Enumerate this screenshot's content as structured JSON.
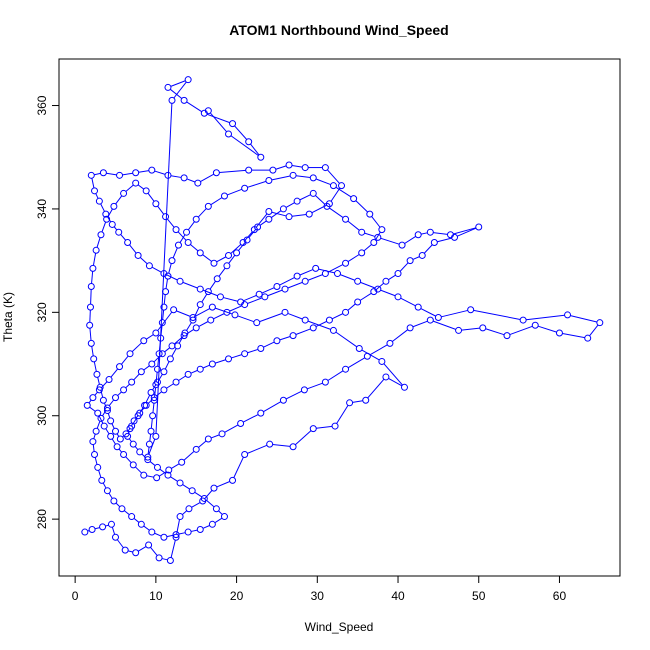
{
  "chart_data": {
    "type": "scatter",
    "title": "ATOM1 Northbound Wind_Speed",
    "xlabel": "Wind_Speed",
    "ylabel": "Theta (K)",
    "xlim": [
      -2,
      67.5
    ],
    "ylim": [
      269,
      369
    ],
    "xticks": [
      0,
      10,
      20,
      30,
      40,
      50,
      60
    ],
    "yticks": [
      280,
      300,
      320,
      340,
      360
    ],
    "grid": false,
    "marker": "open-circle",
    "connected": true,
    "color": "#0000ff",
    "series": [
      {
        "values": [
          [
            1.2,
            277.5
          ],
          [
            2.1,
            278.0
          ],
          [
            3.4,
            278.5
          ],
          [
            4.5,
            279.0
          ],
          [
            5.0,
            276.5
          ],
          [
            6.2,
            274.0
          ],
          [
            7.5,
            273.5
          ],
          [
            9.1,
            275.0
          ],
          [
            10.4,
            272.5
          ],
          [
            11.8,
            272.0
          ],
          [
            12.5,
            276.5
          ],
          [
            13.0,
            280.5
          ],
          [
            14.1,
            282.0
          ],
          [
            15.8,
            283.5
          ],
          [
            17.2,
            286.0
          ],
          [
            19.5,
            287.5
          ],
          [
            21.0,
            292.5
          ],
          [
            24.1,
            294.5
          ],
          [
            27.0,
            294.0
          ],
          [
            29.5,
            297.5
          ],
          [
            32.2,
            298.0
          ],
          [
            34.0,
            302.5
          ],
          [
            36.0,
            303.0
          ],
          [
            38.5,
            307.5
          ],
          [
            40.8,
            305.5
          ],
          [
            38.0,
            310.5
          ],
          [
            35.2,
            313.0
          ],
          [
            32.0,
            316.5
          ],
          [
            28.5,
            318.5
          ],
          [
            26.0,
            320.0
          ],
          [
            22.5,
            318.0
          ],
          [
            19.8,
            319.5
          ],
          [
            17.0,
            321.0
          ],
          [
            14.6,
            319.0
          ],
          [
            12.2,
            320.5
          ],
          [
            10.0,
            316.0
          ],
          [
            8.5,
            314.5
          ],
          [
            6.8,
            312.0
          ],
          [
            5.5,
            309.5
          ],
          [
            4.2,
            307.0
          ],
          [
            3.0,
            305.0
          ],
          [
            2.2,
            303.5
          ],
          [
            1.5,
            302.0
          ],
          [
            2.8,
            300.5
          ],
          [
            3.6,
            298.0
          ],
          [
            4.4,
            296.0
          ],
          [
            5.2,
            294.0
          ],
          [
            6.0,
            292.5
          ],
          [
            7.2,
            290.5
          ],
          [
            8.5,
            288.5
          ],
          [
            10.1,
            288.0
          ],
          [
            11.6,
            289.5
          ],
          [
            13.2,
            291.0
          ],
          [
            15.0,
            293.5
          ],
          [
            16.5,
            295.5
          ],
          [
            18.2,
            296.5
          ],
          [
            20.5,
            298.5
          ],
          [
            23.0,
            300.5
          ],
          [
            25.8,
            303.0
          ],
          [
            28.4,
            305.0
          ],
          [
            31.0,
            306.5
          ],
          [
            33.5,
            309.0
          ],
          [
            36.2,
            311.5
          ],
          [
            39.0,
            314.0
          ],
          [
            41.5,
            317.0
          ],
          [
            44.0,
            318.5
          ],
          [
            47.5,
            316.5
          ],
          [
            50.5,
            317.0
          ],
          [
            53.5,
            315.5
          ],
          [
            57.0,
            317.5
          ],
          [
            60.0,
            316.0
          ],
          [
            63.5,
            315.0
          ],
          [
            65.0,
            318.0
          ],
          [
            61.0,
            319.5
          ],
          [
            55.5,
            318.5
          ],
          [
            49.0,
            320.5
          ],
          [
            45.0,
            319.0
          ],
          [
            42.5,
            321.0
          ],
          [
            40.0,
            323.0
          ],
          [
            37.5,
            324.5
          ],
          [
            35.0,
            326.0
          ],
          [
            32.5,
            327.5
          ],
          [
            29.8,
            328.5
          ],
          [
            27.5,
            327.0
          ],
          [
            25.0,
            325.0
          ],
          [
            22.8,
            323.5
          ],
          [
            20.5,
            322.0
          ],
          [
            18.0,
            323.0
          ],
          [
            15.5,
            324.5
          ],
          [
            13.0,
            326.0
          ],
          [
            11.0,
            327.5
          ],
          [
            9.2,
            329.0
          ],
          [
            7.8,
            331.0
          ],
          [
            6.5,
            333.5
          ],
          [
            5.4,
            335.5
          ],
          [
            4.6,
            337.0
          ],
          [
            3.8,
            339.0
          ],
          [
            3.0,
            341.5
          ],
          [
            2.4,
            343.5
          ],
          [
            2.0,
            346.5
          ],
          [
            3.5,
            347.0
          ],
          [
            5.5,
            346.5
          ],
          [
            7.5,
            347.0
          ],
          [
            9.5,
            347.5
          ],
          [
            11.5,
            346.5
          ],
          [
            13.5,
            346.0
          ],
          [
            15.2,
            345.0
          ],
          [
            17.5,
            347.0
          ],
          [
            21.5,
            347.5
          ],
          [
            24.5,
            347.5
          ],
          [
            26.5,
            348.5
          ],
          [
            28.5,
            348.0
          ],
          [
            31.0,
            348.0
          ],
          [
            33.0,
            344.5
          ],
          [
            31.5,
            341.0
          ],
          [
            29.0,
            339.0
          ],
          [
            26.5,
            338.5
          ],
          [
            24.0,
            339.5
          ],
          [
            22.2,
            336.0
          ],
          [
            20.8,
            333.5
          ],
          [
            19.0,
            331.0
          ],
          [
            17.2,
            329.5
          ],
          [
            15.5,
            331.5
          ],
          [
            14.0,
            333.5
          ],
          [
            12.5,
            336.0
          ],
          [
            11.2,
            338.5
          ],
          [
            10.0,
            341.0
          ],
          [
            8.8,
            343.5
          ],
          [
            7.5,
            345.0
          ],
          [
            6.0,
            343.0
          ],
          [
            4.8,
            340.5
          ],
          [
            3.9,
            338.0
          ],
          [
            3.2,
            335.0
          ],
          [
            2.6,
            332.0
          ],
          [
            2.2,
            328.5
          ],
          [
            2.0,
            325.0
          ],
          [
            1.9,
            321.0
          ],
          [
            1.8,
            317.5
          ],
          [
            2.0,
            314.0
          ],
          [
            2.3,
            311.0
          ],
          [
            2.7,
            308.0
          ],
          [
            3.1,
            305.5
          ],
          [
            3.5,
            303.0
          ],
          [
            4.0,
            301.0
          ],
          [
            4.4,
            299.0
          ],
          [
            5.0,
            297.0
          ],
          [
            5.6,
            295.5
          ],
          [
            6.3,
            296.5
          ],
          [
            7.0,
            298.0
          ],
          [
            7.8,
            300.0
          ],
          [
            8.6,
            302.0
          ],
          [
            9.4,
            304.5
          ],
          [
            10.2,
            306.5
          ],
          [
            11.0,
            308.5
          ],
          [
            11.8,
            311.0
          ],
          [
            12.7,
            313.5
          ],
          [
            13.6,
            316.0
          ],
          [
            14.6,
            318.5
          ],
          [
            15.5,
            321.5
          ],
          [
            16.5,
            324.0
          ],
          [
            17.6,
            326.5
          ],
          [
            18.8,
            329.0
          ],
          [
            20.0,
            331.5
          ],
          [
            21.3,
            334.0
          ],
          [
            22.6,
            336.5
          ],
          [
            24.0,
            338.0
          ],
          [
            25.8,
            340.0
          ],
          [
            27.5,
            341.5
          ],
          [
            29.5,
            343.0
          ],
          [
            31.2,
            340.5
          ],
          [
            33.5,
            338.0
          ],
          [
            35.5,
            335.5
          ],
          [
            37.5,
            334.5
          ],
          [
            40.5,
            333.0
          ],
          [
            42.5,
            335.0
          ],
          [
            44.0,
            335.5
          ],
          [
            46.5,
            335.0
          ],
          [
            50.0,
            336.5
          ],
          [
            47.0,
            334.5
          ],
          [
            44.5,
            333.5
          ],
          [
            43.0,
            331.0
          ],
          [
            41.5,
            330.0
          ],
          [
            40.0,
            327.5
          ],
          [
            38.5,
            326.0
          ],
          [
            37.0,
            324.0
          ],
          [
            35.0,
            322.0
          ],
          [
            33.5,
            320.0
          ],
          [
            31.5,
            318.5
          ],
          [
            29.5,
            317.0
          ],
          [
            27.0,
            315.5
          ],
          [
            25.0,
            314.5
          ],
          [
            23.0,
            313.0
          ],
          [
            21.0,
            312.0
          ],
          [
            19.0,
            311.0
          ],
          [
            17.0,
            310.0
          ],
          [
            15.5,
            309.0
          ],
          [
            14.0,
            308.0
          ],
          [
            12.5,
            306.5
          ],
          [
            11.0,
            305.0
          ],
          [
            9.8,
            303.5
          ],
          [
            8.8,
            302.0
          ],
          [
            8.0,
            300.5
          ],
          [
            7.3,
            299.0
          ],
          [
            6.8,
            297.5
          ],
          [
            6.5,
            296.0
          ],
          [
            7.2,
            294.5
          ],
          [
            8.0,
            293.0
          ],
          [
            9.0,
            291.5
          ],
          [
            10.2,
            290.0
          ],
          [
            11.5,
            288.5
          ],
          [
            13.0,
            287.0
          ],
          [
            14.5,
            285.5
          ],
          [
            16.0,
            284.0
          ],
          [
            17.5,
            282.0
          ],
          [
            18.5,
            280.5
          ],
          [
            17.0,
            279.0
          ],
          [
            15.5,
            278.0
          ],
          [
            14.0,
            277.5
          ],
          [
            12.5,
            277.0
          ],
          [
            11.0,
            276.5
          ],
          [
            9.5,
            277.5
          ],
          [
            8.2,
            279.0
          ],
          [
            7.0,
            280.5
          ],
          [
            5.8,
            282.0
          ],
          [
            4.8,
            283.5
          ],
          [
            4.0,
            285.5
          ],
          [
            3.3,
            287.5
          ],
          [
            2.8,
            290.0
          ],
          [
            2.4,
            292.5
          ],
          [
            2.2,
            295.0
          ],
          [
            2.6,
            297.0
          ],
          [
            3.2,
            299.5
          ],
          [
            4.0,
            301.5
          ],
          [
            5.0,
            303.5
          ],
          [
            6.0,
            305.0
          ],
          [
            7.0,
            306.5
          ],
          [
            8.2,
            308.5
          ],
          [
            9.5,
            310.0
          ],
          [
            10.8,
            312.0
          ],
          [
            12.0,
            313.5
          ],
          [
            13.5,
            315.5
          ],
          [
            15.0,
            317.0
          ],
          [
            16.8,
            318.5
          ],
          [
            18.8,
            320.0
          ],
          [
            21.0,
            321.5
          ],
          [
            23.5,
            323.0
          ],
          [
            26.0,
            324.5
          ],
          [
            28.5,
            326.0
          ],
          [
            31.0,
            327.5
          ],
          [
            33.5,
            329.5
          ],
          [
            35.5,
            331.5
          ],
          [
            37.0,
            333.5
          ],
          [
            38.0,
            336.0
          ],
          [
            36.5,
            339.0
          ],
          [
            34.5,
            342.0
          ],
          [
            32.0,
            344.5
          ],
          [
            29.5,
            346.0
          ],
          [
            27.0,
            346.5
          ],
          [
            24.0,
            345.5
          ],
          [
            21.0,
            344.0
          ],
          [
            18.5,
            342.5
          ],
          [
            16.5,
            340.5
          ],
          [
            15.0,
            338.0
          ],
          [
            13.8,
            335.5
          ],
          [
            12.8,
            333.0
          ],
          [
            12.0,
            330.0
          ],
          [
            11.5,
            327.0
          ],
          [
            11.2,
            324.0
          ],
          [
            11.0,
            321.0
          ],
          [
            10.8,
            318.0
          ],
          [
            10.6,
            315.0
          ],
          [
            10.4,
            312.0
          ],
          [
            10.2,
            309.0
          ],
          [
            10.0,
            306.0
          ],
          [
            9.8,
            303.0
          ],
          [
            9.6,
            300.0
          ],
          [
            9.4,
            297.0
          ],
          [
            9.2,
            294.5
          ],
          [
            9.0,
            292.0
          ],
          [
            10.0,
            296.0
          ],
          [
            12.0,
            361.0
          ],
          [
            14.0,
            365.0
          ],
          [
            11.5,
            363.5
          ],
          [
            13.5,
            361.0
          ],
          [
            16.0,
            358.5
          ],
          [
            19.5,
            356.5
          ],
          [
            21.5,
            353.0
          ],
          [
            23.0,
            350.0
          ],
          [
            19.0,
            354.5
          ],
          [
            16.5,
            359.0
          ]
        ]
      }
    ]
  }
}
